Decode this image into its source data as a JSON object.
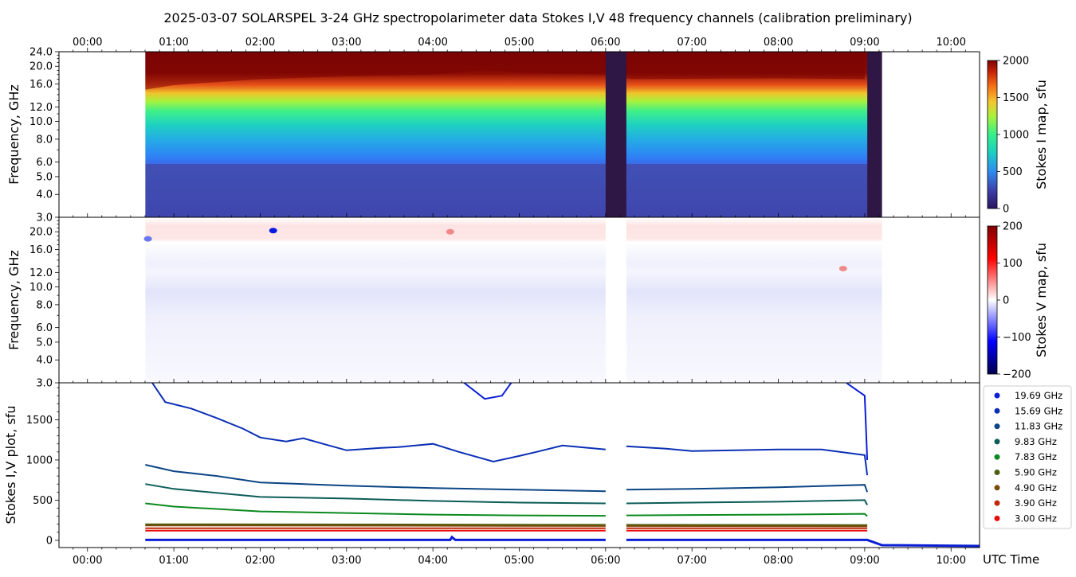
{
  "title": "2025-03-07  SOLARSPEL  3-24 GHz spectropolarimeter data   Stokes I,V   48 frequency channels   (calibration preliminary)",
  "time_axis": {
    "label": "UTC Time",
    "range_hours": [
      -0.33,
      10.33
    ],
    "ticks": [
      {
        "h": 0,
        "label": "00:00"
      },
      {
        "h": 1,
        "label": "01:00"
      },
      {
        "h": 2,
        "label": "02:00"
      },
      {
        "h": 3,
        "label": "03:00"
      },
      {
        "h": 4,
        "label": "04:00"
      },
      {
        "h": 5,
        "label": "05:00"
      },
      {
        "h": 6,
        "label": "06:00"
      },
      {
        "h": 7,
        "label": "07:00"
      },
      {
        "h": 8,
        "label": "08:00"
      },
      {
        "h": 9,
        "label": "09:00"
      },
      {
        "h": 10,
        "label": "10:00"
      }
    ]
  },
  "freq_axis": {
    "label": "Frequency, GHz",
    "scale": "log",
    "range_ghz": [
      3,
      24
    ],
    "ticks_top": [
      3.0,
      4.0,
      5.0,
      6.0,
      8.0,
      10.0,
      12.0,
      16.0,
      20.0,
      24.0
    ],
    "ticks_mid": [
      3.0,
      4.0,
      5.0,
      6.0,
      8.0,
      10.0,
      12.0,
      16.0,
      20.0
    ]
  },
  "colorbar_i": {
    "label": "Stokes I map, sfu",
    "ticks": [
      0,
      500,
      1000,
      1500,
      2000
    ],
    "range": [
      0,
      2000
    ]
  },
  "colorbar_v": {
    "label": "Stokes V map, sfu",
    "ticks": [
      -200,
      -100,
      0,
      100,
      200
    ],
    "range": [
      -200,
      200
    ]
  },
  "stokes_plot": {
    "ylabel": "Stokes I,V plot, sfu",
    "ylim": [
      -90,
      1960
    ],
    "yticks": [
      0,
      500,
      1000,
      1500
    ]
  },
  "legend": [
    {
      "label": "19.69 GHz",
      "color": "#0a1fd6"
    },
    {
      "label": "15.69 GHz",
      "color": "#0a2fb4"
    },
    {
      "label": "11.83 GHz",
      "color": "#0b4585"
    },
    {
      "label": "9.83 GHz",
      "color": "#0b5c58"
    },
    {
      "label": "7.83 GHz",
      "color": "#0a8a1e"
    },
    {
      "label": "5.90 GHz",
      "color": "#4a6010"
    },
    {
      "label": "4.90 GHz",
      "color": "#7a4a08"
    },
    {
      "label": "3.90 GHz",
      "color": "#c02808"
    },
    {
      "label": "3.00 GHz",
      "color": "#e80a0a"
    }
  ],
  "chart_data": [
    {
      "type": "heatmap",
      "name": "Stokes I map",
      "observation_hours": [
        0.67,
        9.2
      ],
      "gap_hours": [
        [
          6.0,
          6.24
        ],
        [
          9.03,
          9.2
        ]
      ],
      "saturation_boundary_ghz": [
        {
          "h": 0.67,
          "ghz": 14.9
        },
        {
          "h": 1.0,
          "ghz": 15.8
        },
        {
          "h": 1.5,
          "ghz": 16.4
        },
        {
          "h": 2.0,
          "ghz": 17.0
        },
        {
          "h": 3.0,
          "ghz": 17.6
        },
        {
          "h": 4.0,
          "ghz": 18.0
        },
        {
          "h": 4.6,
          "ghz": 19.0
        },
        {
          "h": 5.0,
          "ghz": 18.5
        },
        {
          "h": 5.5,
          "ghz": 18.2
        },
        {
          "h": 6.0,
          "ghz": 18.0
        },
        {
          "h": 6.3,
          "ghz": 17.0
        },
        {
          "h": 8.0,
          "ghz": 17.2
        },
        {
          "h": 9.0,
          "ghz": 17.0
        }
      ]
    },
    {
      "type": "heatmap",
      "name": "Stokes V map",
      "observation_hours": [
        0.67,
        9.2
      ],
      "gap_hours": [
        [
          6.0,
          6.24
        ]
      ],
      "features": [
        {
          "h": 2.15,
          "ghz": 20.3,
          "v": -180
        },
        {
          "h": 4.2,
          "ghz": 20.0,
          "v": 60
        },
        {
          "h": 8.75,
          "ghz": 12.6,
          "v": 80
        },
        {
          "h": 0.7,
          "ghz": 18.3,
          "v": -110
        }
      ]
    },
    {
      "type": "line",
      "name": "Stokes I,V plot",
      "series": [
        {
          "name": "19.69 GHz",
          "points": [
            [
              0.67,
              3600
            ],
            [
              3.0,
              3100
            ],
            [
              4.6,
              1760
            ],
            [
              4.8,
              1800
            ],
            [
              5.0,
              2100
            ],
            [
              5.3,
              3000
            ],
            [
              6.3,
              3000
            ],
            [
              8.0,
              2950
            ],
            [
              8.8,
              1950
            ],
            [
              9.0,
              1800
            ],
            [
              9.03,
              1000
            ]
          ]
        },
        {
          "name": "15.69 GHz",
          "points": [
            [
              0.75,
              1960
            ],
            [
              0.9,
              1720
            ],
            [
              1.2,
              1640
            ],
            [
              1.5,
              1520
            ],
            [
              1.8,
              1390
            ],
            [
              2.0,
              1280
            ],
            [
              2.3,
              1230
            ],
            [
              2.5,
              1270
            ],
            [
              2.8,
              1180
            ],
            [
              3.0,
              1120
            ],
            [
              3.4,
              1150
            ],
            [
              3.6,
              1160
            ],
            [
              3.8,
              1180
            ],
            [
              4.0,
              1200
            ],
            [
              4.3,
              1100
            ],
            [
              4.7,
              980
            ],
            [
              5.0,
              1050
            ],
            [
              5.2,
              1100
            ],
            [
              5.5,
              1180
            ],
            [
              6.0,
              1130
            ],
            [
              6.24,
              1170
            ],
            [
              6.7,
              1140
            ],
            [
              7.0,
              1110
            ],
            [
              7.5,
              1120
            ],
            [
              8.0,
              1130
            ],
            [
              8.5,
              1130
            ],
            [
              9.0,
              1060
            ],
            [
              9.03,
              810
            ]
          ]
        },
        {
          "name": "11.83 GHz",
          "points": [
            [
              0.67,
              940
            ],
            [
              1.0,
              860
            ],
            [
              1.5,
              800
            ],
            [
              2.0,
              720
            ],
            [
              3.0,
              680
            ],
            [
              4.0,
              650
            ],
            [
              5.0,
              630
            ],
            [
              6.0,
              610
            ],
            [
              6.24,
              630
            ],
            [
              7.0,
              640
            ],
            [
              8.0,
              660
            ],
            [
              9.0,
              690
            ],
            [
              9.03,
              600
            ]
          ]
        },
        {
          "name": "9.83 GHz",
          "points": [
            [
              0.67,
              700
            ],
            [
              1.0,
              640
            ],
            [
              2.0,
              540
            ],
            [
              3.0,
              520
            ],
            [
              4.0,
              490
            ],
            [
              5.0,
              470
            ],
            [
              6.0,
              460
            ],
            [
              6.24,
              460
            ],
            [
              7.0,
              470
            ],
            [
              8.0,
              480
            ],
            [
              9.0,
              500
            ],
            [
              9.03,
              440
            ]
          ]
        },
        {
          "name": "7.83 GHz",
          "points": [
            [
              0.67,
              460
            ],
            [
              1.0,
              420
            ],
            [
              2.0,
              360
            ],
            [
              3.0,
              340
            ],
            [
              4.0,
              320
            ],
            [
              5.0,
              310
            ],
            [
              6.0,
              305
            ],
            [
              6.24,
              310
            ],
            [
              7.0,
              315
            ],
            [
              8.0,
              320
            ],
            [
              9.0,
              330
            ],
            [
              9.03,
              300
            ]
          ]
        },
        {
          "name": "5.90 GHz",
          "points": [
            [
              0.67,
              200
            ],
            [
              9.03,
              190
            ]
          ]
        },
        {
          "name": "4.90 GHz",
          "points": [
            [
              0.67,
              185
            ],
            [
              9.03,
              175
            ]
          ]
        },
        {
          "name": "3.90 GHz",
          "points": [
            [
              0.67,
              150
            ],
            [
              9.03,
              150
            ]
          ]
        },
        {
          "name": "3.00 GHz",
          "points": [
            [
              0.67,
              120
            ],
            [
              9.03,
              120
            ]
          ]
        }
      ]
    }
  ]
}
